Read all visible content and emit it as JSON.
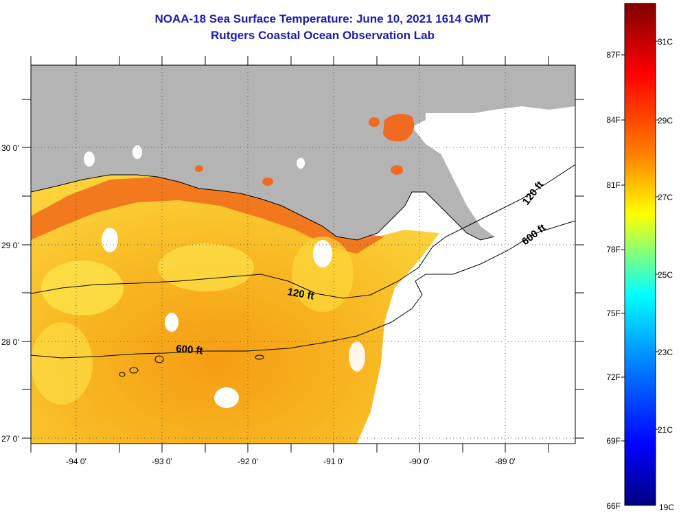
{
  "title": {
    "line1": "NOAA-18 Sea Surface Temperature:  June 10, 2021 1614 GMT",
    "line2": "Rutgers Coastal Ocean Observation Lab"
  },
  "map": {
    "lon_labels": [
      "-94 0'",
      "-93 0'",
      "-92 0'",
      "-91 0'",
      "-90 0'",
      "-89 0'"
    ],
    "lat_labels": [
      "30 0'",
      "29 0'",
      "28 0'",
      "27 0'"
    ],
    "contours": [
      {
        "label": "120 ft"
      },
      {
        "label": "600 ft"
      }
    ],
    "land_color": "#b4b4b4",
    "no_data_color": "#ffffff"
  },
  "colorbar": {
    "f_labels": [
      "87F",
      "84F",
      "81F",
      "78F",
      "75F",
      "72F",
      "69F",
      "66F"
    ],
    "c_labels": [
      "31C",
      "29C",
      "27C",
      "25C",
      "23C",
      "21C",
      "19C"
    ],
    "colors": [
      "#800000",
      "#ff0000",
      "#ff8000",
      "#ffff00",
      "#00ffff",
      "#0080ff",
      "#0000ff",
      "#000080"
    ]
  }
}
